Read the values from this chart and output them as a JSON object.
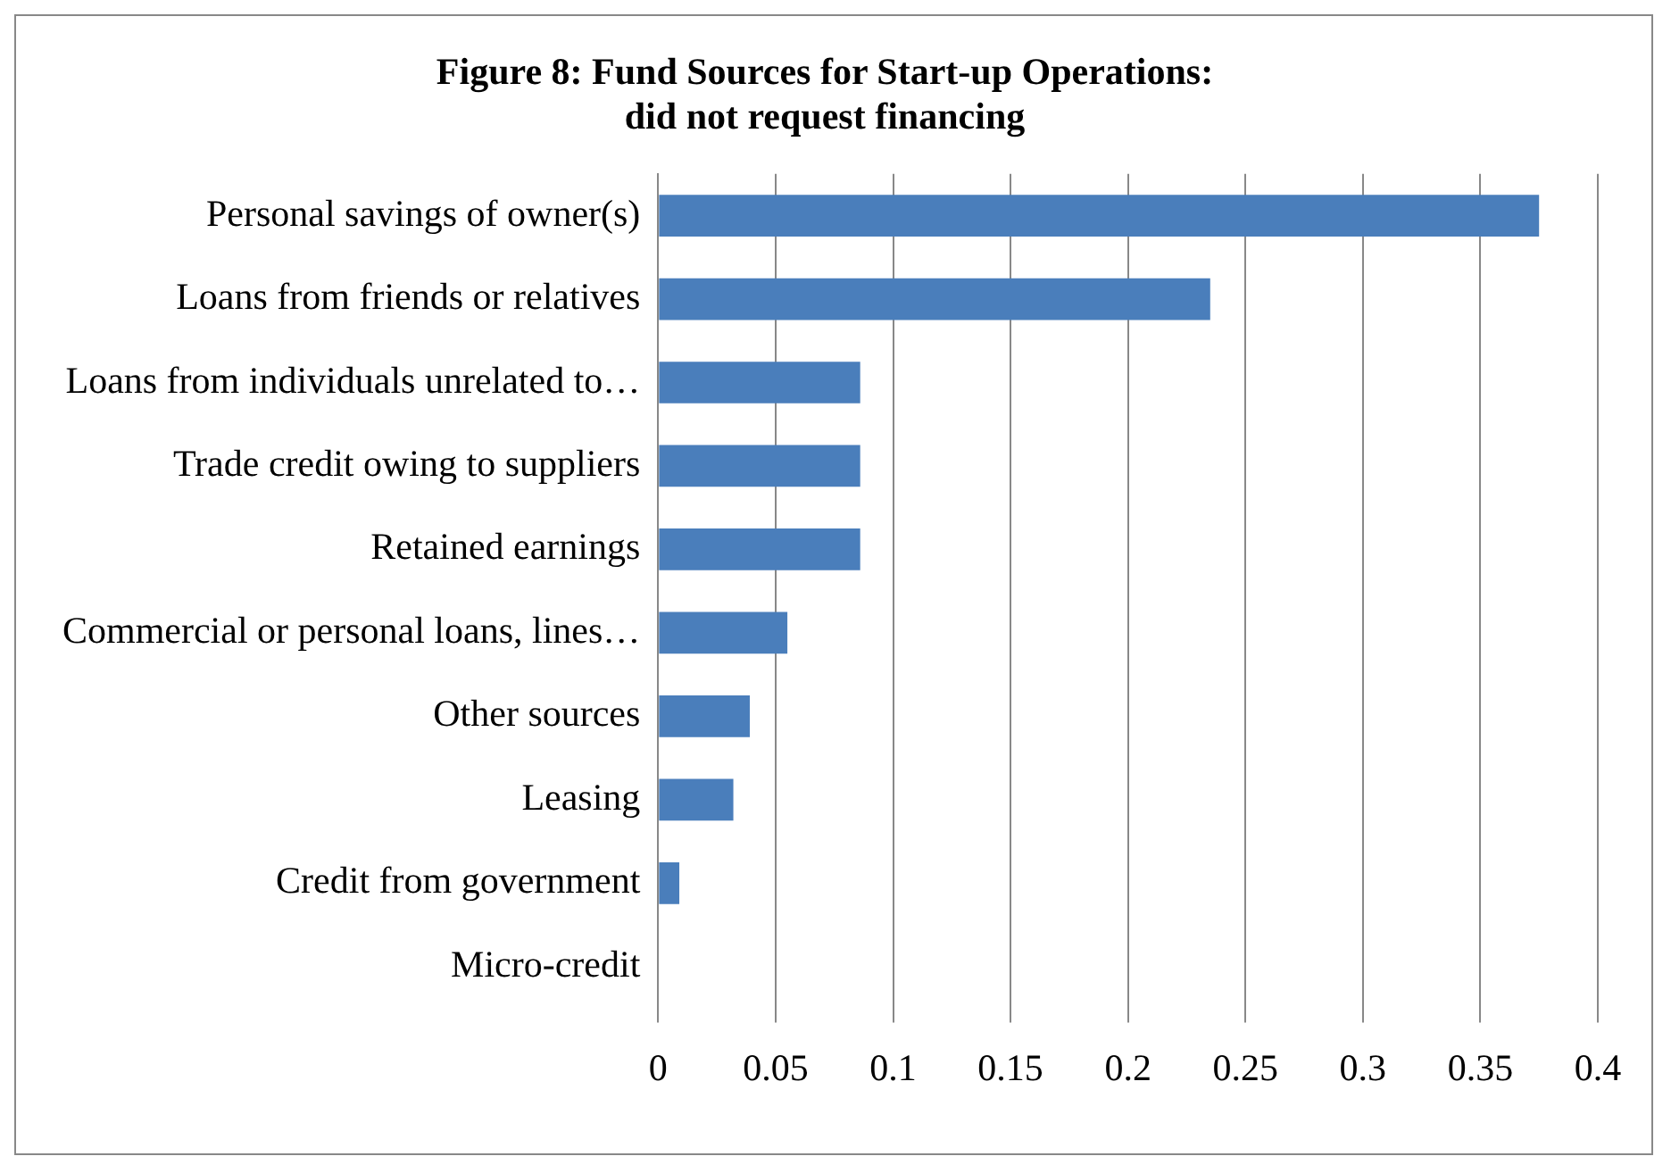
{
  "chart_data": {
    "type": "bar",
    "orientation": "horizontal",
    "title": "Figure 8: Fund Sources for Start-up Operations:\ndid not request financing",
    "categories": [
      "Personal savings of owner(s)",
      "Loans from friends or relatives",
      "Loans from individuals unrelated to…",
      "Trade credit owing to suppliers",
      "Retained earnings",
      "Commercial or personal loans, lines…",
      "Other sources",
      "Leasing",
      "Credit from government",
      "Micro-credit"
    ],
    "values": [
      0.375,
      0.235,
      0.086,
      0.086,
      0.086,
      0.055,
      0.039,
      0.032,
      0.009,
      0
    ],
    "color": "#4a7ebb",
    "xlim": [
      0,
      0.4
    ],
    "xticks": [
      0,
      0.05,
      0.1,
      0.15,
      0.2,
      0.25,
      0.3,
      0.35,
      0.4
    ],
    "grid": "x",
    "legend": false
  }
}
